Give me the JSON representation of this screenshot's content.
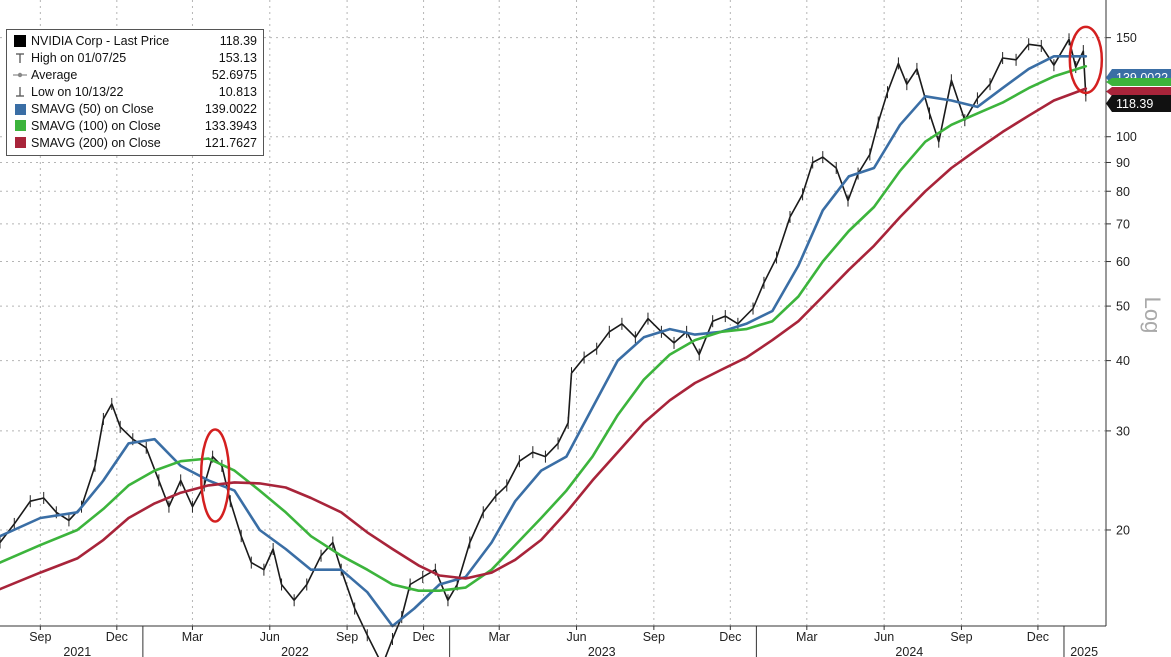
{
  "chart_data": {
    "type": "line",
    "y_scale": "log",
    "y_axis_label": "Log",
    "ylim": [
      13.5,
      175
    ],
    "y_ticks": [
      20,
      30,
      40,
      50,
      60,
      70,
      80,
      90,
      100,
      150
    ],
    "xlim": [
      "2021-07-15",
      "2025-02-20"
    ],
    "x_ticks": [
      {
        "label": "Sep",
        "date": "2021-09-01"
      },
      {
        "label": "Dec",
        "date": "2021-12-01"
      },
      {
        "label": "Mar",
        "date": "2022-03-01"
      },
      {
        "label": "Jun",
        "date": "2022-06-01"
      },
      {
        "label": "Sep",
        "date": "2022-09-01"
      },
      {
        "label": "Dec",
        "date": "2022-12-01"
      },
      {
        "label": "Mar",
        "date": "2023-03-01"
      },
      {
        "label": "Jun",
        "date": "2023-06-01"
      },
      {
        "label": "Sep",
        "date": "2023-09-01"
      },
      {
        "label": "Dec",
        "date": "2023-12-01"
      },
      {
        "label": "Mar",
        "date": "2024-03-01"
      },
      {
        "label": "Jun",
        "date": "2024-06-01"
      },
      {
        "label": "Sep",
        "date": "2024-09-01"
      },
      {
        "label": "Dec",
        "date": "2024-12-01"
      }
    ],
    "years": [
      {
        "label": "2021",
        "date": "2021-10-15"
      },
      {
        "label": "2022",
        "date": "2022-07-01"
      },
      {
        "label": "2023",
        "date": "2023-07-01"
      },
      {
        "label": "2024",
        "date": "2024-07-01"
      },
      {
        "label": "2025",
        "date": "2025-01-25"
      }
    ],
    "year_dividers": [
      "2022-01-01",
      "2023-01-01",
      "2024-01-01",
      "2025-01-01"
    ],
    "grid": true,
    "legend_position": "top-left",
    "legend": [
      {
        "name": "NVIDIA Corp - Last Price",
        "value": "118.39",
        "symbol": "black-square"
      },
      {
        "name": "High on 01/07/25",
        "value": "153.13",
        "symbol": "high-marker"
      },
      {
        "name": "Average",
        "value": "52.6975",
        "symbol": "average-marker"
      },
      {
        "name": "Low on 10/13/22",
        "value": "10.813",
        "symbol": "low-marker"
      },
      {
        "name": "SMAVG (50)  on Close",
        "value": "139.0022",
        "symbol": "swatch",
        "color": "#3a6ea5"
      },
      {
        "name": "SMAVG (100)  on Close",
        "value": "133.3943",
        "symbol": "swatch",
        "color": "#3cb43c"
      },
      {
        "name": "SMAVG (200)  on Close",
        "value": "121.7627",
        "symbol": "swatch",
        "color": "#a8243a"
      }
    ],
    "price_series": {
      "color": "#1a1a1a",
      "points": [
        [
          "2021-07-15",
          19.0
        ],
        [
          "2021-08-01",
          20.5
        ],
        [
          "2021-08-20",
          22.5
        ],
        [
          "2021-09-05",
          22.8
        ],
        [
          "2021-09-20",
          21.5
        ],
        [
          "2021-10-05",
          20.8
        ],
        [
          "2021-10-20",
          22.0
        ],
        [
          "2021-11-05",
          26.0
        ],
        [
          "2021-11-15",
          31.5
        ],
        [
          "2021-11-25",
          33.5
        ],
        [
          "2021-12-05",
          30.5
        ],
        [
          "2021-12-20",
          29.0
        ],
        [
          "2022-01-05",
          28.0
        ],
        [
          "2022-01-20",
          24.5
        ],
        [
          "2022-02-01",
          22.0
        ],
        [
          "2022-02-15",
          24.5
        ],
        [
          "2022-03-01",
          22.0
        ],
        [
          "2022-03-15",
          24.0
        ],
        [
          "2022-03-25",
          27.0
        ],
        [
          "2022-04-05",
          26.0
        ],
        [
          "2022-04-15",
          22.5
        ],
        [
          "2022-04-28",
          19.5
        ],
        [
          "2022-05-10",
          17.5
        ],
        [
          "2022-05-25",
          17.0
        ],
        [
          "2022-06-05",
          18.5
        ],
        [
          "2022-06-15",
          16.0
        ],
        [
          "2022-06-30",
          15.0
        ],
        [
          "2022-07-15",
          16.0
        ],
        [
          "2022-08-01",
          18.0
        ],
        [
          "2022-08-15",
          19.0
        ],
        [
          "2022-08-25",
          17.0
        ],
        [
          "2022-09-10",
          14.5
        ],
        [
          "2022-09-25",
          13.0
        ],
        [
          "2022-10-13",
          11.5
        ],
        [
          "2022-10-25",
          12.8
        ],
        [
          "2022-11-05",
          14.0
        ],
        [
          "2022-11-15",
          16.0
        ],
        [
          "2022-11-30",
          16.5
        ],
        [
          "2022-12-15",
          17.0
        ],
        [
          "2022-12-30",
          15.0
        ],
        [
          "2023-01-10",
          16.0
        ],
        [
          "2023-01-25",
          19.0
        ],
        [
          "2023-02-10",
          21.5
        ],
        [
          "2023-02-25",
          23.0
        ],
        [
          "2023-03-10",
          24.0
        ],
        [
          "2023-03-25",
          26.5
        ],
        [
          "2023-04-10",
          27.5
        ],
        [
          "2023-04-25",
          27.0
        ],
        [
          "2023-05-10",
          28.5
        ],
        [
          "2023-05-22",
          31.0
        ],
        [
          "2023-05-26",
          38.0
        ],
        [
          "2023-06-10",
          40.5
        ],
        [
          "2023-06-25",
          42.0
        ],
        [
          "2023-07-10",
          45.0
        ],
        [
          "2023-07-25",
          46.5
        ],
        [
          "2023-08-10",
          44.0
        ],
        [
          "2023-08-25",
          47.5
        ],
        [
          "2023-09-10",
          45.0
        ],
        [
          "2023-09-25",
          43.0
        ],
        [
          "2023-10-10",
          45.0
        ],
        [
          "2023-10-25",
          41.0
        ],
        [
          "2023-11-10",
          47.0
        ],
        [
          "2023-11-25",
          48.0
        ],
        [
          "2023-12-10",
          46.5
        ],
        [
          "2023-12-28",
          49.5
        ],
        [
          "2024-01-10",
          55.0
        ],
        [
          "2024-01-25",
          61.0
        ],
        [
          "2024-02-10",
          72.0
        ],
        [
          "2024-02-25",
          79.0
        ],
        [
          "2024-03-08",
          90.0
        ],
        [
          "2024-03-20",
          92.0
        ],
        [
          "2024-04-05",
          88.0
        ],
        [
          "2024-04-19",
          77.0
        ],
        [
          "2024-05-01",
          86.0
        ],
        [
          "2024-05-15",
          93.0
        ],
        [
          "2024-05-25",
          106.0
        ],
        [
          "2024-06-05",
          120.0
        ],
        [
          "2024-06-18",
          135.0
        ],
        [
          "2024-06-28",
          124.0
        ],
        [
          "2024-07-10",
          132.0
        ],
        [
          "2024-07-25",
          110.0
        ],
        [
          "2024-08-05",
          98.0
        ],
        [
          "2024-08-20",
          126.0
        ],
        [
          "2024-09-05",
          107.0
        ],
        [
          "2024-09-20",
          117.0
        ],
        [
          "2024-10-05",
          124.0
        ],
        [
          "2024-10-20",
          138.0
        ],
        [
          "2024-11-05",
          137.0
        ],
        [
          "2024-11-20",
          146.0
        ],
        [
          "2024-12-05",
          145.0
        ],
        [
          "2024-12-20",
          134.0
        ],
        [
          "2025-01-07",
          149.0
        ],
        [
          "2025-01-15",
          133.0
        ],
        [
          "2025-01-24",
          142.0
        ],
        [
          "2025-01-27",
          118.39
        ]
      ]
    },
    "series": [
      {
        "name": "SMAVG (50)  on Close",
        "color": "#3a6ea5",
        "points": [
          [
            "2021-07-15",
            19.5
          ],
          [
            "2021-09-01",
            21.0
          ],
          [
            "2021-10-15",
            21.5
          ],
          [
            "2021-11-15",
            24.5
          ],
          [
            "2021-12-15",
            28.5
          ],
          [
            "2022-01-15",
            29.0
          ],
          [
            "2022-02-15",
            26.0
          ],
          [
            "2022-03-20",
            24.5
          ],
          [
            "2022-04-20",
            23.5
          ],
          [
            "2022-05-20",
            20.0
          ],
          [
            "2022-06-20",
            18.5
          ],
          [
            "2022-07-20",
            17.0
          ],
          [
            "2022-08-25",
            17.0
          ],
          [
            "2022-09-25",
            15.5
          ],
          [
            "2022-10-25",
            13.5
          ],
          [
            "2022-11-20",
            14.5
          ],
          [
            "2022-12-20",
            16.0
          ],
          [
            "2023-01-20",
            16.5
          ],
          [
            "2023-02-20",
            19.0
          ],
          [
            "2023-03-20",
            22.5
          ],
          [
            "2023-04-20",
            25.5
          ],
          [
            "2023-05-20",
            27.0
          ],
          [
            "2023-06-20",
            33.0
          ],
          [
            "2023-07-20",
            40.0
          ],
          [
            "2023-08-20",
            44.0
          ],
          [
            "2023-09-20",
            45.5
          ],
          [
            "2023-10-20",
            44.5
          ],
          [
            "2023-11-20",
            45.0
          ],
          [
            "2023-12-20",
            46.5
          ],
          [
            "2024-01-20",
            49.0
          ],
          [
            "2024-02-20",
            59.0
          ],
          [
            "2024-03-20",
            74.0
          ],
          [
            "2024-04-20",
            85.0
          ],
          [
            "2024-05-20",
            88.0
          ],
          [
            "2024-06-20",
            105.0
          ],
          [
            "2024-07-20",
            118.0
          ],
          [
            "2024-08-20",
            116.0
          ],
          [
            "2024-09-20",
            113.0
          ],
          [
            "2024-10-20",
            122.0
          ],
          [
            "2024-11-20",
            132.0
          ],
          [
            "2024-12-20",
            139.0
          ],
          [
            "2025-01-27",
            139.0022
          ]
        ]
      },
      {
        "name": "SMAVG (100)  on Close",
        "color": "#3cb43c",
        "points": [
          [
            "2021-07-15",
            17.5
          ],
          [
            "2021-09-01",
            18.8
          ],
          [
            "2021-10-15",
            20.0
          ],
          [
            "2021-11-15",
            21.8
          ],
          [
            "2021-12-15",
            24.0
          ],
          [
            "2022-01-15",
            25.5
          ],
          [
            "2022-02-15",
            26.5
          ],
          [
            "2022-03-20",
            26.8
          ],
          [
            "2022-04-20",
            25.5
          ],
          [
            "2022-05-20",
            23.5
          ],
          [
            "2022-06-20",
            21.5
          ],
          [
            "2022-07-20",
            19.5
          ],
          [
            "2022-08-25",
            18.0
          ],
          [
            "2022-09-25",
            17.0
          ],
          [
            "2022-10-25",
            16.0
          ],
          [
            "2022-11-25",
            15.6
          ],
          [
            "2022-12-20",
            15.6
          ],
          [
            "2023-01-20",
            15.8
          ],
          [
            "2023-02-20",
            17.0
          ],
          [
            "2023-03-20",
            18.8
          ],
          [
            "2023-04-20",
            21.0
          ],
          [
            "2023-05-20",
            23.5
          ],
          [
            "2023-06-20",
            27.0
          ],
          [
            "2023-07-20",
            32.0
          ],
          [
            "2023-08-20",
            37.0
          ],
          [
            "2023-09-20",
            41.0
          ],
          [
            "2023-10-20",
            43.5
          ],
          [
            "2023-11-20",
            45.0
          ],
          [
            "2023-12-20",
            45.5
          ],
          [
            "2024-01-20",
            47.0
          ],
          [
            "2024-02-20",
            52.0
          ],
          [
            "2024-03-20",
            60.0
          ],
          [
            "2024-04-20",
            68.0
          ],
          [
            "2024-05-20",
            75.0
          ],
          [
            "2024-06-20",
            87.0
          ],
          [
            "2024-07-20",
            98.0
          ],
          [
            "2024-08-20",
            105.0
          ],
          [
            "2024-09-20",
            110.0
          ],
          [
            "2024-10-20",
            115.0
          ],
          [
            "2024-11-20",
            122.0
          ],
          [
            "2024-12-20",
            128.0
          ],
          [
            "2025-01-27",
            133.3943
          ]
        ]
      },
      {
        "name": "SMAVG (200)  on Close",
        "color": "#a8243a",
        "points": [
          [
            "2021-07-15",
            15.7
          ],
          [
            "2021-09-01",
            16.8
          ],
          [
            "2021-10-15",
            17.8
          ],
          [
            "2021-11-15",
            19.2
          ],
          [
            "2021-12-15",
            21.0
          ],
          [
            "2022-01-15",
            22.3
          ],
          [
            "2022-02-15",
            23.3
          ],
          [
            "2022-03-20",
            24.0
          ],
          [
            "2022-04-20",
            24.3
          ],
          [
            "2022-05-20",
            24.2
          ],
          [
            "2022-06-20",
            23.8
          ],
          [
            "2022-07-20",
            22.8
          ],
          [
            "2022-08-25",
            21.5
          ],
          [
            "2022-09-25",
            19.8
          ],
          [
            "2022-10-25",
            18.5
          ],
          [
            "2022-11-25",
            17.3
          ],
          [
            "2022-12-20",
            16.6
          ],
          [
            "2023-01-20",
            16.4
          ],
          [
            "2023-02-20",
            16.8
          ],
          [
            "2023-03-20",
            17.7
          ],
          [
            "2023-04-20",
            19.2
          ],
          [
            "2023-05-20",
            21.5
          ],
          [
            "2023-06-20",
            24.5
          ],
          [
            "2023-07-20",
            27.5
          ],
          [
            "2023-08-20",
            31.0
          ],
          [
            "2023-09-20",
            34.0
          ],
          [
            "2023-10-20",
            36.5
          ],
          [
            "2023-11-20",
            38.5
          ],
          [
            "2023-12-20",
            40.5
          ],
          [
            "2024-01-20",
            43.5
          ],
          [
            "2024-02-20",
            47.0
          ],
          [
            "2024-03-20",
            52.0
          ],
          [
            "2024-04-20",
            58.0
          ],
          [
            "2024-05-20",
            64.0
          ],
          [
            "2024-06-20",
            72.0
          ],
          [
            "2024-07-20",
            80.0
          ],
          [
            "2024-08-20",
            88.0
          ],
          [
            "2024-09-20",
            95.0
          ],
          [
            "2024-10-20",
            102.0
          ],
          [
            "2024-11-20",
            109.0
          ],
          [
            "2024-12-20",
            116.0
          ],
          [
            "2025-01-27",
            121.7627
          ]
        ]
      }
    ],
    "price_tags": [
      {
        "text": "139.0022",
        "value": 139.0022,
        "color": "#3a6ea5"
      },
      {
        "text": "133.3943",
        "value": 133.3943,
        "color": "#3cb43c"
      },
      {
        "text": "121.7627",
        "value": 121.7627,
        "color": "#a8243a"
      },
      {
        "text": "118.39",
        "value": 118.39,
        "color": "#111111"
      }
    ],
    "highlight_circles": [
      {
        "center": [
          "2022-03-28",
          25.0
        ],
        "color": "#d42020"
      },
      {
        "center": [
          "2025-01-27",
          137.0
        ],
        "color": "#d42020"
      }
    ]
  }
}
